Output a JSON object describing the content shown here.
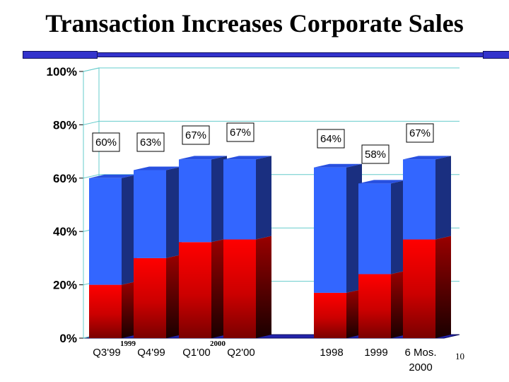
{
  "title": "Transaction Increases Corporate Sales",
  "page_number": "10",
  "colors": {
    "accent_bar": "#3333cc",
    "series_upper": "#3366ff",
    "series_lower": "#ff0000",
    "gridline": "#66cccc"
  },
  "chart_data": {
    "type": "bar",
    "stacked": true,
    "categories": [
      "Q3'99",
      "Q4'99",
      "Q1'00",
      "Q2'00",
      "1998",
      "1999",
      "6 Mos. 2000"
    ],
    "category_display": [
      [
        "Q3'99"
      ],
      [
        "Q4'99"
      ],
      [
        "Q1'00"
      ],
      [
        "Q2'00"
      ],
      [
        "1998"
      ],
      [
        "1999"
      ],
      [
        "6 Mos.",
        "2000"
      ]
    ],
    "group_labels": [
      {
        "text": "1999",
        "category_index": 0
      },
      {
        "text": "2000",
        "category_index": 2
      }
    ],
    "series": [
      {
        "values": [
          20,
          30,
          36,
          37,
          17,
          24,
          37
        ],
        "color": "#ff0000"
      },
      {
        "values": [
          40,
          33,
          31,
          30,
          47,
          34,
          30
        ],
        "color": "#3366ff"
      }
    ],
    "totals": [
      60,
      63,
      67,
      67,
      64,
      58,
      67
    ],
    "data_labels": [
      "60%",
      "63%",
      "67%",
      "67%",
      "64%",
      "58%",
      "67%"
    ],
    "yticks": [
      "0%",
      "20%",
      "40%",
      "60%",
      "80%",
      "100%"
    ],
    "ylim": [
      0,
      100
    ],
    "xlabel": "",
    "ylabel": "",
    "grid": true,
    "legend": "none"
  }
}
